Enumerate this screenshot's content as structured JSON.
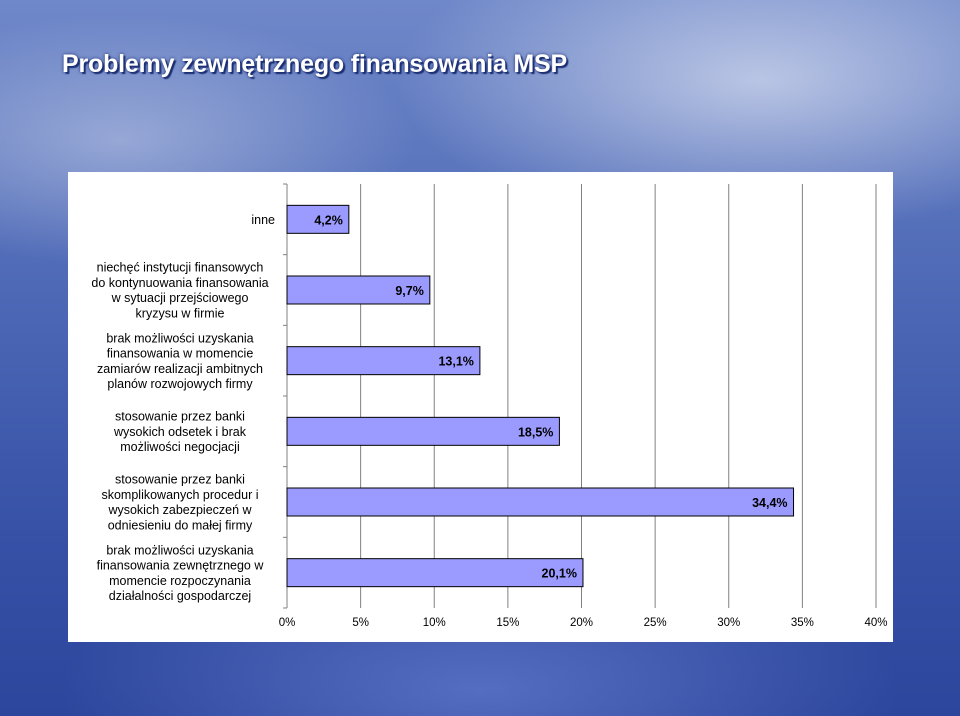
{
  "title": "Problemy zewnętrznego finansowania MSP",
  "colors": {
    "bar_fill": "#9b9bff",
    "bar_stroke": "#000000",
    "grid": "#808080"
  },
  "chart_data": {
    "type": "bar",
    "orientation": "horizontal",
    "title": "",
    "xlabel": "",
    "ylabel": "",
    "xlim": [
      0,
      40
    ],
    "grid": true,
    "ticks": [
      "0%",
      "5%",
      "10%",
      "15%",
      "20%",
      "25%",
      "30%",
      "35%",
      "40%"
    ],
    "categories": [
      {
        "lines": [
          "inne"
        ]
      },
      {
        "lines": [
          "niechęć instytucji finansowych",
          "do kontynuowania finansowania",
          "w sytuacji przejściowego",
          "kryzysu w firmie"
        ]
      },
      {
        "lines": [
          "brak możliwości uzyskania",
          "finansowania w momencie",
          "zamiarów realizacji ambitnych",
          "planów rozwojowych firmy"
        ]
      },
      {
        "lines": [
          "stosowanie przez banki",
          "wysokich odsetek i brak",
          "możliwości negocjacji"
        ]
      },
      {
        "lines": [
          "stosowanie przez banki",
          "skomplikowanych procedur i",
          "wysokich zabezpieczeń w",
          "odniesieniu do małej firmy"
        ]
      },
      {
        "lines": [
          "brak możliwości uzyskania",
          "finansowania zewnętrznego w",
          "momencie rozpoczynania",
          "działalności gospodarczej"
        ]
      }
    ],
    "values": [
      4.2,
      9.7,
      13.1,
      18.5,
      34.4,
      20.1
    ],
    "data_labels": [
      "4,2%",
      "9,7%",
      "13,1%",
      "18,5%",
      "34,4%",
      "20,1%"
    ]
  }
}
